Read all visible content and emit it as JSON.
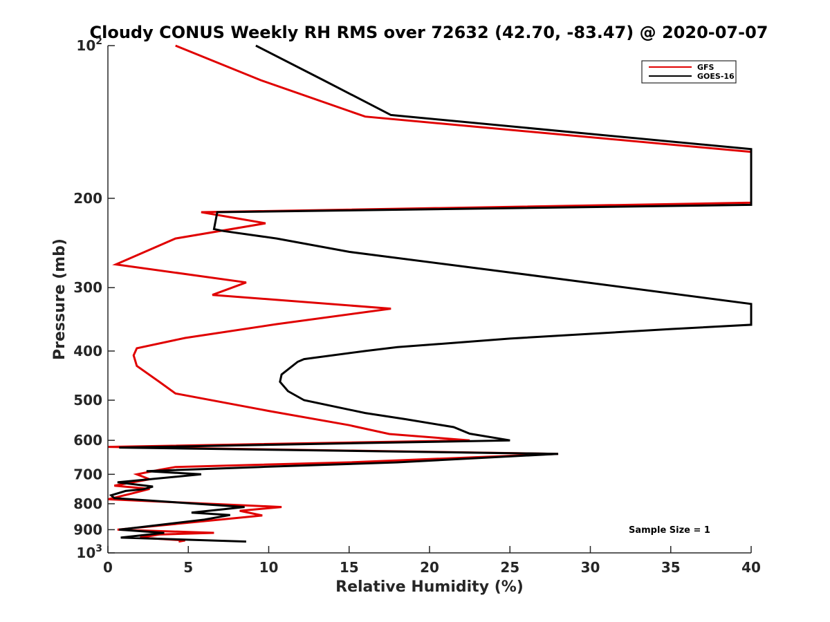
{
  "chart_data": {
    "type": "line",
    "title": "Cloudy CONUS Weekly RH RMS over 72632 (42.70, -83.47) @ 2020-07-07",
    "xlabel": "Relative Humidity (%)",
    "ylabel": "Pressure (mb)",
    "xlim": [
      0,
      40
    ],
    "ylim": [
      100,
      1000
    ],
    "yscale": "log",
    "y_reversed": true,
    "grid": false,
    "legend_position": "top-right",
    "x_ticks": [
      "0",
      "5",
      "10",
      "15",
      "20",
      "25",
      "30",
      "35",
      "40"
    ],
    "x_tick_values": [
      0,
      5,
      10,
      15,
      20,
      25,
      30,
      35,
      40
    ],
    "y_ticks": [
      {
        "value": 100,
        "base": "10",
        "exp": "2"
      },
      {
        "value": 200,
        "label": "200"
      },
      {
        "value": 300,
        "label": "300"
      },
      {
        "value": 400,
        "label": "400"
      },
      {
        "value": 500,
        "label": "500"
      },
      {
        "value": 600,
        "label": "600"
      },
      {
        "value": 700,
        "label": "700"
      },
      {
        "value": 800,
        "label": "800"
      },
      {
        "value": 900,
        "label": "900"
      },
      {
        "value": 1000,
        "base": "10",
        "exp": "3"
      }
    ],
    "annotation": "Sample Size = 1",
    "series": [
      {
        "name": "GFS",
        "color": "#e00000",
        "points": [
          [
            4.2,
            100
          ],
          [
            9.5,
            117
          ],
          [
            16,
            138
          ],
          [
            40,
            162
          ],
          [
            40,
            204
          ],
          [
            5.8,
            213
          ],
          [
            9.8,
            224
          ],
          [
            4.2,
            240
          ],
          [
            0.5,
            270
          ],
          [
            8.6,
            293
          ],
          [
            6.5,
            310
          ],
          [
            17.6,
            330
          ],
          [
            10.5,
            354
          ],
          [
            4.8,
            377
          ],
          [
            1.8,
            395
          ],
          [
            1.6,
            408
          ],
          [
            1.8,
            428
          ],
          [
            3.2,
            460
          ],
          [
            4.2,
            485
          ],
          [
            10,
            525
          ],
          [
            15,
            560
          ],
          [
            17.5,
            583
          ],
          [
            22.5,
            600
          ],
          [
            0,
            618
          ],
          [
            28,
            638
          ],
          [
            15,
            663
          ],
          [
            4.2,
            677
          ],
          [
            3.2,
            686
          ],
          [
            1.8,
            700
          ],
          [
            2.6,
            716
          ],
          [
            0.4,
            737
          ],
          [
            2.6,
            748
          ],
          [
            1.4,
            765
          ],
          [
            0,
            784
          ],
          [
            10.8,
            812
          ],
          [
            8.2,
            826
          ],
          [
            9.6,
            844
          ],
          [
            0.6,
            900
          ],
          [
            6.6,
            913
          ],
          [
            3.2,
            920
          ],
          [
            2,
            933
          ],
          [
            4.8,
            945
          ],
          [
            4.4,
            950
          ]
        ]
      },
      {
        "name": "GOES-16",
        "color": "#000000",
        "points": [
          [
            9.2,
            100
          ],
          [
            13.4,
            117
          ],
          [
            17.6,
            137
          ],
          [
            40,
            160
          ],
          [
            40,
            206
          ],
          [
            6.8,
            213
          ],
          [
            6.6,
            230
          ],
          [
            7.2,
            232
          ],
          [
            10.5,
            240
          ],
          [
            15,
            255
          ],
          [
            25,
            280
          ],
          [
            40,
            323
          ],
          [
            40,
            355
          ],
          [
            35,
            362
          ],
          [
            25,
            378
          ],
          [
            18,
            393
          ],
          [
            16,
            400
          ],
          [
            12.2,
            415
          ],
          [
            11.8,
            420
          ],
          [
            10.8,
            445
          ],
          [
            10.7,
            460
          ],
          [
            11.2,
            480
          ],
          [
            12.2,
            500
          ],
          [
            16,
            530
          ],
          [
            18.5,
            545
          ],
          [
            21.5,
            565
          ],
          [
            22.5,
            582
          ],
          [
            25,
            600
          ],
          [
            0.7,
            620
          ],
          [
            28,
            638
          ],
          [
            18,
            663
          ],
          [
            9.5,
            677
          ],
          [
            2.4,
            690
          ],
          [
            5.8,
            700
          ],
          [
            0.6,
            726
          ],
          [
            2.8,
            740
          ],
          [
            2.2,
            749
          ],
          [
            1.1,
            755
          ],
          [
            0.2,
            770
          ],
          [
            0.4,
            780
          ],
          [
            8.5,
            812
          ],
          [
            5.2,
            833
          ],
          [
            7.6,
            842
          ],
          [
            6,
            860
          ],
          [
            0.7,
            900
          ],
          [
            3.5,
            913
          ],
          [
            0.8,
            933
          ],
          [
            8.6,
            950
          ]
        ]
      }
    ]
  }
}
